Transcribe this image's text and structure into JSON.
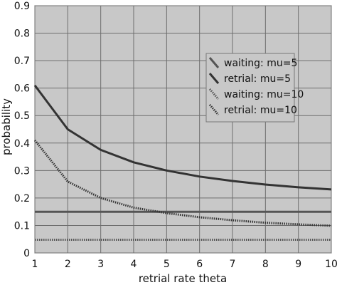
{
  "chart_data": {
    "type": "line",
    "title": "",
    "xlabel": "retrial rate theta",
    "ylabel": "probability",
    "xlim": [
      1,
      10
    ],
    "ylim": [
      0,
      0.9
    ],
    "xticks": [
      "1",
      "2",
      "3",
      "4",
      "5",
      "6",
      "7",
      "8",
      "9",
      "10"
    ],
    "yticks": [
      "0",
      "0.1",
      "0.2",
      "0.3",
      "0.4",
      "0.5",
      "0.6",
      "0.7",
      "0.8",
      "0.9"
    ],
    "grid": true,
    "background": "#c8c8c8",
    "legend_position": "top-right",
    "series": [
      {
        "name": "waiting: mu=5",
        "style": "solid",
        "color": "#555555",
        "x": [
          1,
          2,
          3,
          4,
          5,
          6,
          7,
          8,
          9,
          10
        ],
        "y": [
          0.15,
          0.15,
          0.15,
          0.15,
          0.15,
          0.15,
          0.15,
          0.15,
          0.15,
          0.15
        ]
      },
      {
        "name": "retrial: mu=5",
        "style": "solid",
        "color": "#333333",
        "x": [
          1,
          2,
          3,
          4,
          5,
          6,
          7,
          8,
          9,
          10
        ],
        "y": [
          0.61,
          0.45,
          0.375,
          0.33,
          0.3,
          0.278,
          0.262,
          0.249,
          0.239,
          0.231
        ]
      },
      {
        "name": "waiting: mu=10",
        "style": "dotted",
        "color": "#555555",
        "x": [
          1,
          2,
          3,
          4,
          5,
          6,
          7,
          8,
          9,
          10
        ],
        "y": [
          0.048,
          0.048,
          0.048,
          0.048,
          0.048,
          0.048,
          0.048,
          0.048,
          0.048,
          0.048
        ]
      },
      {
        "name": "retrial: mu=10",
        "style": "dotted",
        "color": "#333333",
        "x": [
          1,
          2,
          3,
          4,
          5,
          6,
          7,
          8,
          9,
          10
        ],
        "y": [
          0.41,
          0.26,
          0.2,
          0.165,
          0.145,
          0.13,
          0.119,
          0.11,
          0.104,
          0.099
        ]
      }
    ]
  }
}
